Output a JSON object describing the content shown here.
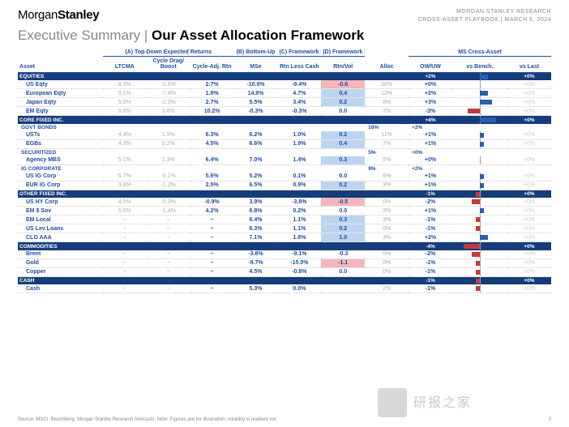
{
  "header": {
    "brand_left": "Morgan",
    "brand_right": "Stanley",
    "line1": "MORGAN STANLEY RESEARCH",
    "line2": "CROSS-ASSET PLAYBOOK | MARCH 6, 2024"
  },
  "title": {
    "pre": "Executive Summary | ",
    "main": "Our Asset Allocation Framework"
  },
  "group_headers": {
    "a": "(A) Top-Down Expected Returns",
    "b": "(B) Bottom-Up",
    "c": "(C) Framework Forecast",
    "d": "(D) Framework R/R",
    "ms": "MS Cross-Asset"
  },
  "columns": {
    "asset": "Asset",
    "ltcma": "LTCMA",
    "drag": "Cycle Drag/ Boost",
    "cadj": "Cycle-Adj. Rtn",
    "mse": "MSe",
    "rlc": "Rtn Less Cash",
    "rv": "Rtn/Vol",
    "alloc": "Alloc",
    "owuw": "OW/UW",
    "vsbench": "vs Bench.",
    "vslast": "vs Last"
  },
  "colors": {
    "navy": "#153d7a",
    "blue": "#1f4ea1",
    "pos_bar": "#2a5fb0",
    "neg_bar": "#c23b3b",
    "hl_pos": "#bcd4f0",
    "hl_neg": "#f4b6bb"
  },
  "sections": [
    {
      "name": "EQUITIES",
      "owuw": "+2%",
      "vsb": 2,
      "vsb_color": "pos",
      "vslast": "+0%",
      "rows": [
        {
          "asset": "US Eqty",
          "ltcma": "8.3%",
          "drag": "-5.6%",
          "cadj": "2.7%",
          "mse": "-10.9%",
          "rlc": "-9.4%",
          "rv": "-0.6",
          "rv_hl": "neg",
          "alloc": "30%",
          "owuw": "+0%",
          "vsb": 0,
          "vslast": "+0%"
        },
        {
          "asset": "European Eqty",
          "ltcma": "9.1%",
          "drag": "-7.4%",
          "cadj": "1.8%",
          "mse": "14.8%",
          "rlc": "4.7%",
          "rv": "0.4",
          "rv_hl": "pos",
          "alloc": "12%",
          "owuw": "+2%",
          "vsb": 2,
          "vsb_color": "pos",
          "vslast": "+0%"
        },
        {
          "asset": "Japan Eqty",
          "ltcma": "5.0%",
          "drag": "-2.3%",
          "cadj": "2.7%",
          "mse": "5.5%",
          "rlc": "3.4%",
          "rv": "0.2",
          "rv_hl": "pos",
          "alloc": "8%",
          "owuw": "+3%",
          "vsb": 3,
          "vsb_color": "pos",
          "vslast": "+0%"
        },
        {
          "asset": "EM Eqty",
          "ltcma": "6.6%",
          "drag": "3.6%",
          "cadj": "10.2%",
          "mse": "-0.3%",
          "rlc": "-0.3%",
          "rv": "0.0",
          "alloc": "7%",
          "owuw": "-3%",
          "vsb": -3,
          "vsb_color": "neg",
          "vslast": "+0%"
        }
      ]
    },
    {
      "name": "CORE FIXED INC.",
      "owuw": "+4%",
      "vsb": 4,
      "vsb_color": "pos",
      "vslast": "+0%",
      "subsections": [
        {
          "name": "GOVT BONDS",
          "alloc": "18%",
          "owuw": "+2%",
          "rows": [
            {
              "asset": "USTs",
              "ltcma": "4.4%",
              "drag": "1.9%",
              "cadj": "6.3%",
              "mse": "6.2%",
              "rlc": "1.0%",
              "rv": "0.2",
              "rv_hl": "pos",
              "alloc": "11%",
              "owuw": "+1%",
              "vsb": 1,
              "vsb_color": "pos",
              "vslast": "+0%"
            },
            {
              "asset": "EGBs",
              "ltcma": "4.3%",
              "drag": "0.2%",
              "cadj": "4.5%",
              "mse": "6.6%",
              "rlc": "1.9%",
              "rv": "0.4",
              "rv_hl": "pos",
              "alloc": "7%",
              "owuw": "+1%",
              "vsb": 1,
              "vsb_color": "pos",
              "vslast": "+0%"
            }
          ]
        },
        {
          "name": "SECURITIZED",
          "alloc": "5%",
          "owuw": "+0%",
          "rows": [
            {
              "asset": "Agency MBS",
              "ltcma": "5.1%",
              "drag": "1.3%",
              "cadj": "6.4%",
              "mse": "7.0%",
              "rlc": "1.4%",
              "rv": "0.3",
              "rv_hl": "pos",
              "alloc": "5%",
              "owuw": "+0%",
              "vsb": 0,
              "vslast": "+0%"
            }
          ]
        },
        {
          "name": "IG CORPORATE",
          "alloc": "9%",
          "owuw": "+2%",
          "rows": [
            {
              "asset": "US IG Corp",
              "ltcma": "5.7%",
              "drag": "-0.1%",
              "cadj": "5.6%",
              "mse": "5.2%",
              "rlc": "0.1%",
              "rv": "0.0",
              "alloc": "6%",
              "owuw": "+1%",
              "vsb": 1,
              "vsb_color": "pos",
              "vslast": "+0%"
            },
            {
              "asset": "EUR IG Corp",
              "ltcma": "3.8%",
              "drag": "-1.2%",
              "cadj": "2.5%",
              "mse": "6.5%",
              "rlc": "0.9%",
              "rv": "0.2",
              "rv_hl": "pos",
              "alloc": "3%",
              "owuw": "+1%",
              "vsb": 1,
              "vsb_color": "pos",
              "vslast": "+0%"
            }
          ]
        }
      ]
    },
    {
      "name": "OTHER FIXED INC.",
      "owuw": "-1%",
      "vsb": -1,
      "vsb_color": "neg",
      "vslast": "+0%",
      "rows": [
        {
          "asset": "US HY Corp",
          "ltcma": "4.5%",
          "drag": "-5.3%",
          "cadj": "-0.9%",
          "mse": "3.9%",
          "rlc": "-3.8%",
          "rv": "-0.5",
          "rv_hl": "neg",
          "alloc": "0%",
          "owuw": "-2%",
          "vsb": -2,
          "vsb_color": "neg",
          "vslast": "+0%"
        },
        {
          "asset": "EM $ Sov",
          "ltcma": "5.6%",
          "drag": "-1.4%",
          "cadj": "4.2%",
          "mse": "6.8%",
          "rlc": "0.2%",
          "rv": "0.0",
          "alloc": "3%",
          "owuw": "+1%",
          "vsb": 1,
          "vsb_color": "pos",
          "vslast": "+0%"
        },
        {
          "asset": "EM Local",
          "ltcma": "~",
          "drag": "~",
          "cadj": "~",
          "mse": "6.4%",
          "rlc": "1.1%",
          "rv": "0.3",
          "rv_hl": "pos",
          "alloc": "3%",
          "owuw": "-1%",
          "vsb": -1,
          "vsb_color": "neg",
          "vslast": "+0%"
        },
        {
          "asset": "US Lev Loans",
          "ltcma": "~",
          "drag": "~",
          "cadj": "~",
          "mse": "6.3%",
          "rlc": "1.1%",
          "rv": "0.2",
          "rv_hl": "pos",
          "alloc": "0%",
          "owuw": "-1%",
          "vsb": -1,
          "vsb_color": "neg",
          "vslast": "+0%"
        },
        {
          "asset": "CLO AAA",
          "ltcma": "~",
          "drag": "~",
          "cadj": "~",
          "mse": "7.1%",
          "rlc": "1.8%",
          "rv": "1.0",
          "rv_hl": "pos",
          "alloc": "3%",
          "owuw": "+2%",
          "vsb": 2,
          "vsb_color": "pos",
          "vslast": "+0%"
        }
      ]
    },
    {
      "name": "COMMODITIES",
      "owuw": "-4%",
      "vsb": -4,
      "vsb_color": "neg",
      "vslast": "+0%",
      "rows": [
        {
          "asset": "Brent",
          "ltcma": "~",
          "drag": "~",
          "cadj": "~",
          "mse": "-3.8%",
          "rlc": "-9.1%",
          "rv": "-0.3",
          "alloc": "0%",
          "owuw": "-2%",
          "vsb": -2,
          "vsb_color": "neg",
          "vslast": "+0%"
        },
        {
          "asset": "Gold",
          "ltcma": "~",
          "drag": "~",
          "cadj": "~",
          "mse": "-9.7%",
          "rlc": "-15.0%",
          "rv": "-1.1",
          "rv_hl": "neg",
          "alloc": "0%",
          "owuw": "-1%",
          "vsb": -1,
          "vsb_color": "neg",
          "vslast": "+0%"
        },
        {
          "asset": "Copper",
          "ltcma": "~",
          "drag": "~",
          "cadj": "~",
          "mse": "4.5%",
          "rlc": "-0.8%",
          "rv": "0.0",
          "alloc": "0%",
          "owuw": "-1%",
          "vsb": -1,
          "vsb_color": "neg",
          "vslast": "+0%"
        }
      ]
    },
    {
      "name": "CASH",
      "owuw": "-1%",
      "vsb": -1,
      "vsb_color": "neg",
      "vslast": "+0%",
      "rows": [
        {
          "asset": "Cash",
          "ltcma": "~",
          "drag": "~",
          "cadj": "~",
          "mse": "5.3%",
          "rlc": "0.0%",
          "rv": "",
          "alloc": "2%",
          "owuw": "-1%",
          "vsb": -1,
          "vsb_color": "neg",
          "vslast": "+0%"
        }
      ]
    }
  ],
  "footer": {
    "source": "Source: MSCI, Bloomberg, Morgan Stanley Research forecasts; Note: Figures are for illustration; volatility is realised vol.",
    "page": "3"
  },
  "watermark": "研报之家"
}
